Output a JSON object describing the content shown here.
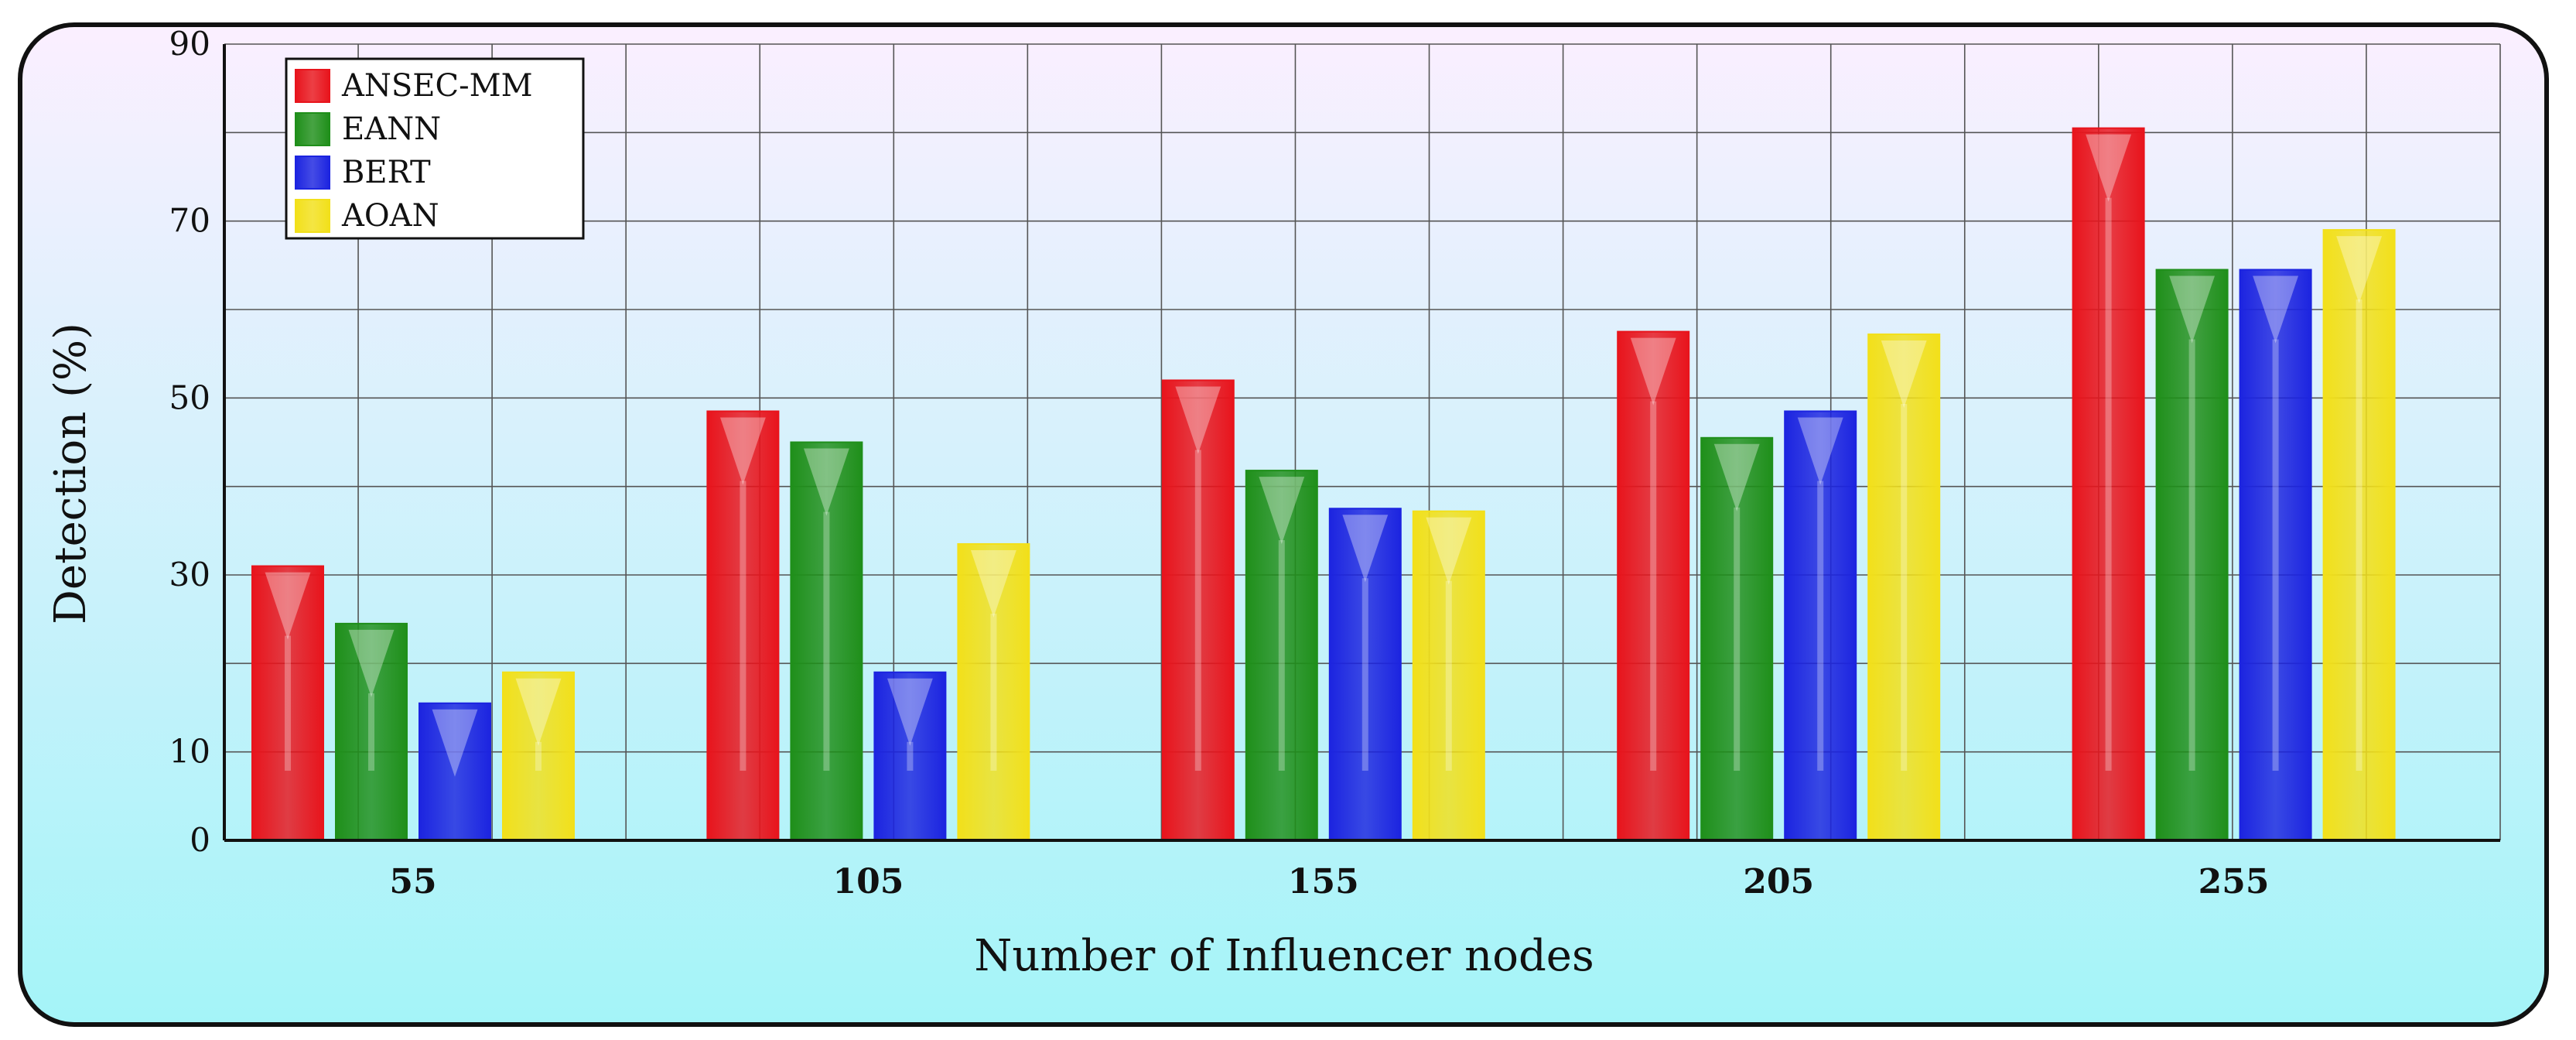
{
  "chart_data": {
    "type": "bar",
    "title": "",
    "xlabel": "Number of Influencer nodes",
    "ylabel": "Detection (%)",
    "categories": [
      "55",
      "105",
      "155",
      "205",
      "255"
    ],
    "yticks": [
      0,
      10,
      30,
      50,
      70,
      90
    ],
    "ylim": [
      0,
      90
    ],
    "grid": true,
    "legend_position": "top-left",
    "series": [
      {
        "name": "ANSEC-MM",
        "color": "#e8141c",
        "values": [
          31,
          48.5,
          52,
          57.5,
          80.5
        ]
      },
      {
        "name": "EANN",
        "color": "#1f8f1a",
        "values": [
          24.5,
          45,
          41.8,
          45.5,
          64.5
        ]
      },
      {
        "name": "BERT",
        "color": "#1c24e0",
        "values": [
          15.5,
          19,
          37.5,
          48.5,
          64.5
        ]
      },
      {
        "name": "AOAN",
        "color": "#f2e01a",
        "values": [
          19,
          33.5,
          37.2,
          57.2,
          69
        ]
      }
    ]
  },
  "background": {
    "top_color": "#fbefff",
    "bottom_color": "#a4f4f8",
    "border_color": "#111111"
  }
}
